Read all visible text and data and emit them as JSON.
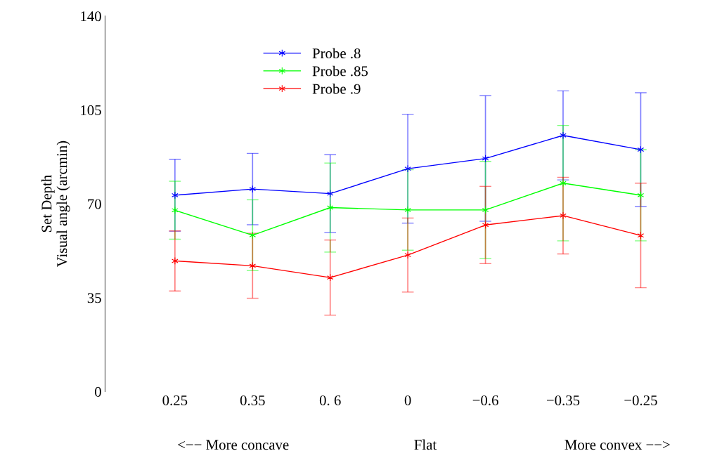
{
  "chart_data": {
    "type": "line",
    "ylabel": "Set Depth\nVisual angle (arcmin)",
    "categories": [
      "0.25",
      "0.35",
      "0. 6",
      "0",
      "−0.6",
      "−0.35",
      "−0.25"
    ],
    "series": [
      {
        "name": "Probe .8",
        "color": "#0000ff",
        "values": [
          73.2,
          75.5,
          73.8,
          83.1,
          86.9,
          95.5,
          90.2
        ],
        "errors": [
          13.4,
          13.3,
          14.5,
          20.3,
          23.4,
          16.6,
          21.2
        ]
      },
      {
        "name": "Probe .85",
        "color": "#00ff00",
        "values": [
          67.6,
          58.3,
          68.6,
          67.7,
          67.7,
          77.7,
          73.2
        ],
        "errors": [
          10.8,
          13.2,
          16.6,
          15.0,
          18.1,
          21.5,
          17.0
        ]
      },
      {
        "name": "Probe .9",
        "color": "#ff0000",
        "values": [
          48.7,
          46.9,
          42.5,
          50.9,
          62.1,
          65.6,
          58.2
        ],
        "errors": [
          11.2,
          12.1,
          14.0,
          13.8,
          14.4,
          14.3,
          19.5
        ]
      }
    ],
    "ylim": [
      0,
      140
    ],
    "yticks": [
      0,
      35,
      70,
      105,
      140
    ],
    "annotations": [
      "<−− More concave",
      "Flat",
      "More convex −−>"
    ],
    "legend": "top left",
    "marker": "cross",
    "line_style": "solid",
    "grid": false
  }
}
